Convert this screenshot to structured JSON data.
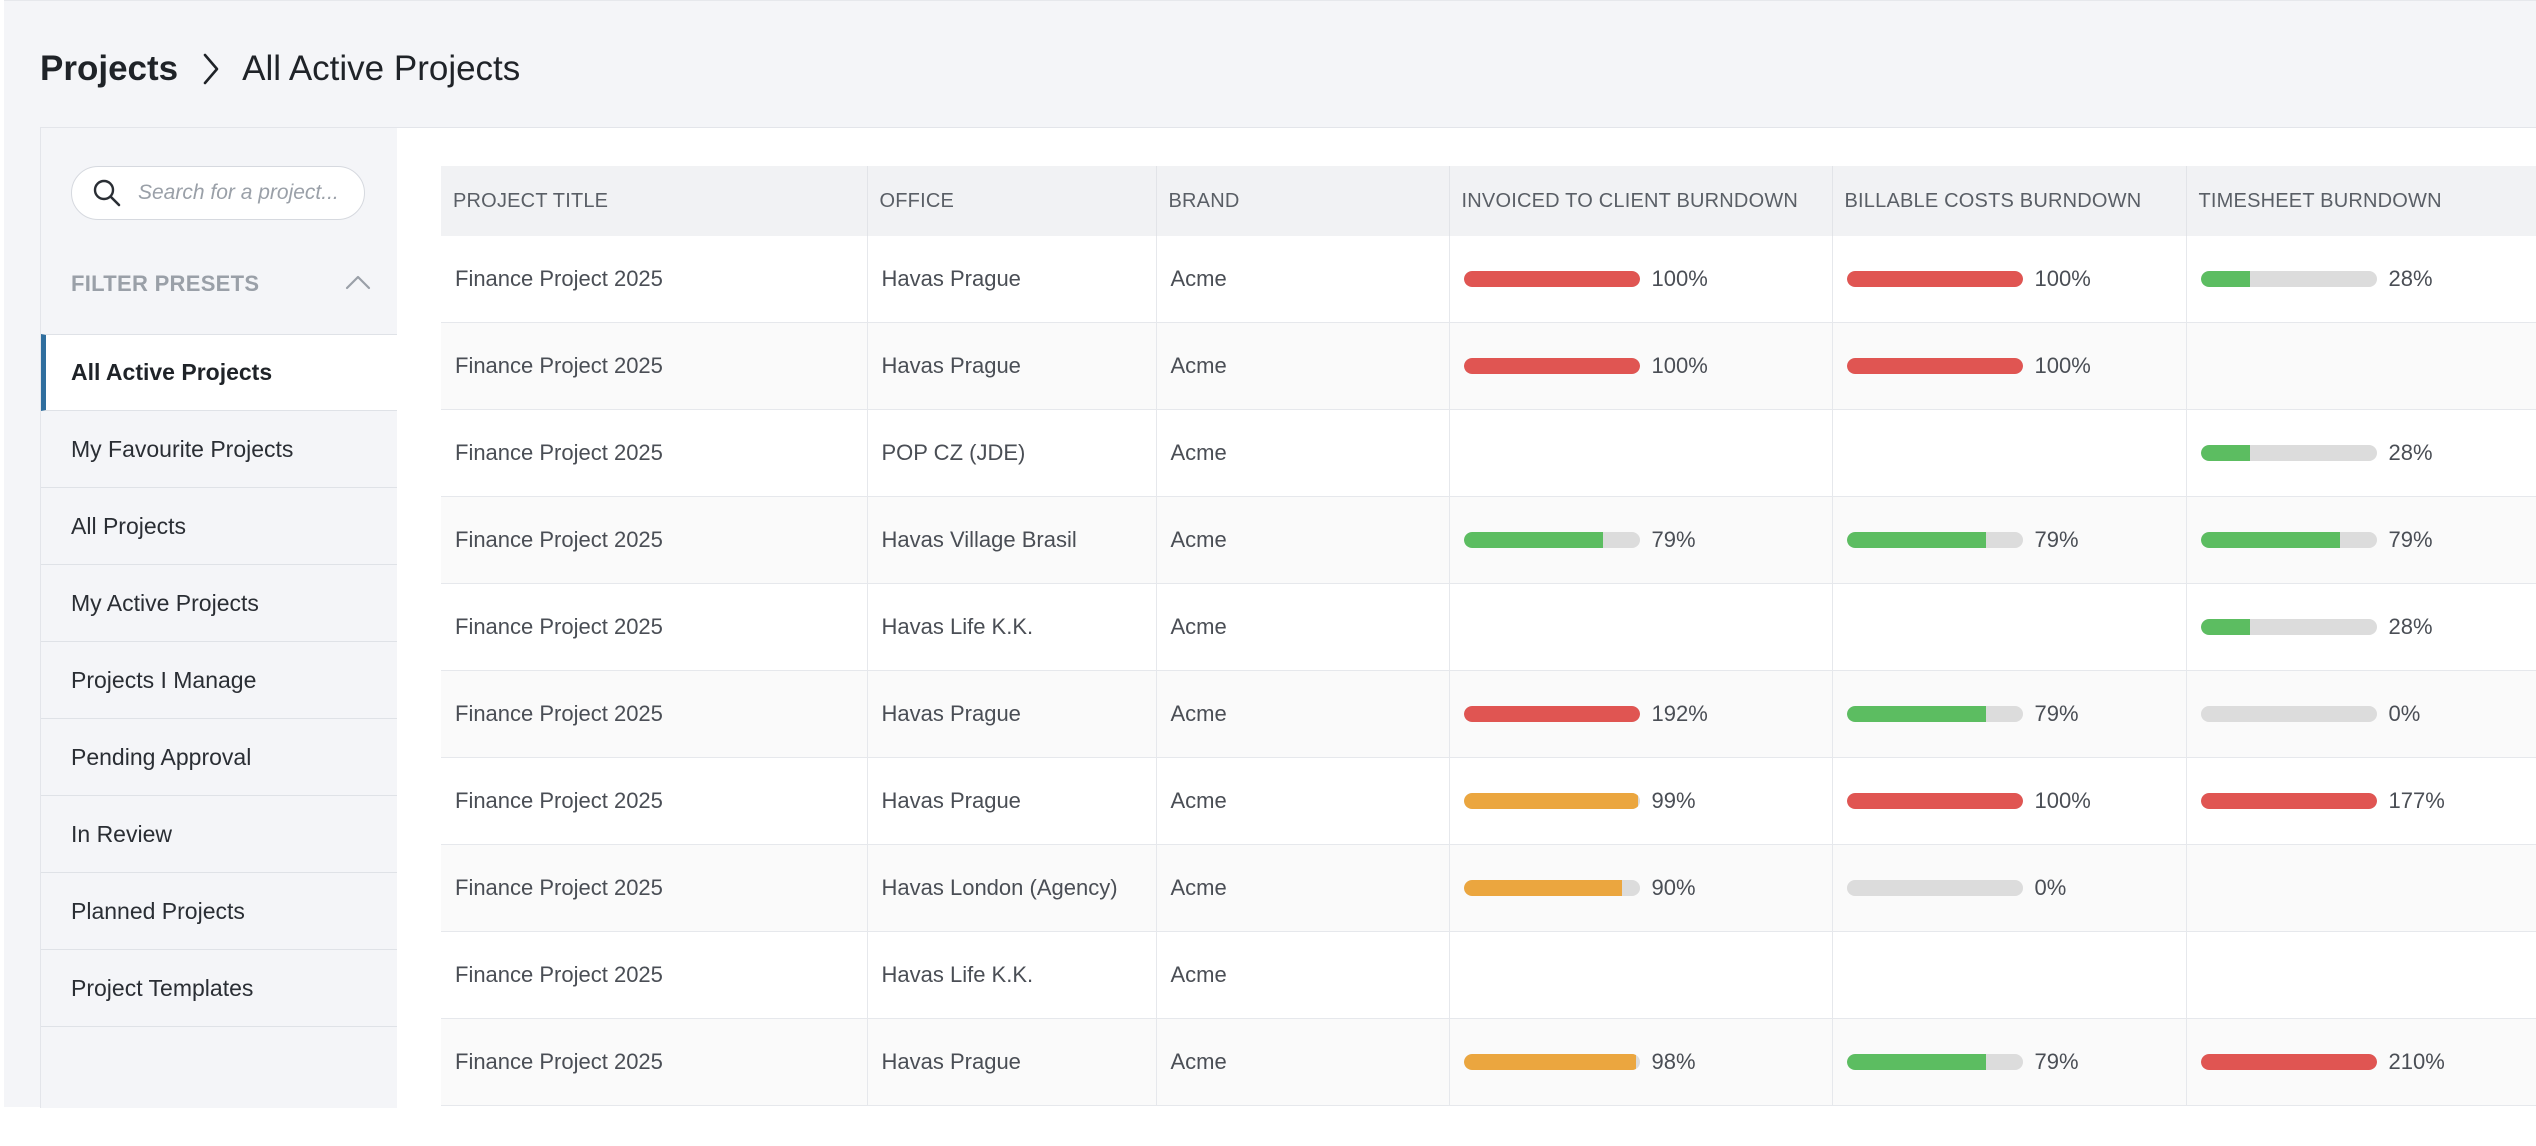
{
  "breadcrumb": {
    "root": "Projects",
    "current": "All Active Projects"
  },
  "search": {
    "placeholder": "Search for a project...",
    "icon": "search-icon"
  },
  "filter_presets": {
    "title": "FILTER PRESETS",
    "items": [
      {
        "label": "All Active Projects",
        "active": true
      },
      {
        "label": "My Favourite Projects",
        "active": false
      },
      {
        "label": "All Projects",
        "active": false
      },
      {
        "label": "My Active Projects",
        "active": false
      },
      {
        "label": "Projects I Manage",
        "active": false
      },
      {
        "label": "Pending Approval",
        "active": false
      },
      {
        "label": "In Review",
        "active": false
      },
      {
        "label": "Planned Projects",
        "active": false
      },
      {
        "label": "Project Templates",
        "active": false
      }
    ]
  },
  "colors": {
    "red": "#e05552",
    "green": "#5cbd61",
    "orange": "#eba63f",
    "track": "#dcdcdc",
    "accent": "#2f6e9e"
  },
  "table": {
    "columns": [
      "PROJECT TITLE",
      "OFFICE",
      "BRAND",
      "INVOICED TO CLIENT BURNDOWN",
      "BILLABLE COSTS BURNDOWN",
      "TIMESHEET BURNDOWN"
    ],
    "rows": [
      {
        "title": "Finance Project 2025",
        "office": "Havas Prague",
        "brand": "Acme",
        "invoiced": {
          "pct": 100,
          "label": "100%",
          "color": "red"
        },
        "billable": {
          "pct": 100,
          "label": "100%",
          "color": "red"
        },
        "timesheet": {
          "pct": 28,
          "label": "28%",
          "color": "green"
        }
      },
      {
        "title": "Finance Project 2025",
        "office": "Havas Prague",
        "brand": "Acme",
        "invoiced": {
          "pct": 100,
          "label": "100%",
          "color": "red"
        },
        "billable": {
          "pct": 100,
          "label": "100%",
          "color": "red"
        },
        "timesheet": null
      },
      {
        "title": "Finance Project 2025",
        "office": "POP CZ (JDE)",
        "brand": "Acme",
        "invoiced": null,
        "billable": null,
        "timesheet": {
          "pct": 28,
          "label": "28%",
          "color": "green"
        }
      },
      {
        "title": "Finance Project 2025",
        "office": "Havas Village Brasil",
        "brand": "Acme",
        "invoiced": {
          "pct": 79,
          "label": "79%",
          "color": "green"
        },
        "billable": {
          "pct": 79,
          "label": "79%",
          "color": "green"
        },
        "timesheet": {
          "pct": 79,
          "label": "79%",
          "color": "green"
        }
      },
      {
        "title": "Finance Project 2025",
        "office": "Havas Life K.K.",
        "brand": "Acme",
        "invoiced": null,
        "billable": null,
        "timesheet": {
          "pct": 28,
          "label": "28%",
          "color": "green"
        }
      },
      {
        "title": "Finance Project 2025",
        "office": "Havas Prague",
        "brand": "Acme",
        "invoiced": {
          "pct": 100,
          "label": "192%",
          "color": "red"
        },
        "billable": {
          "pct": 79,
          "label": "79%",
          "color": "green"
        },
        "timesheet": {
          "pct": 0,
          "label": "0%",
          "color": "green"
        }
      },
      {
        "title": "Finance Project 2025",
        "office": "Havas Prague",
        "brand": "Acme",
        "invoiced": {
          "pct": 99,
          "label": "99%",
          "color": "orange"
        },
        "billable": {
          "pct": 100,
          "label": "100%",
          "color": "red"
        },
        "timesheet": {
          "pct": 100,
          "label": "177%",
          "color": "red"
        }
      },
      {
        "title": "Finance Project 2025",
        "office": "Havas London (Agency)",
        "brand": "Acme",
        "invoiced": {
          "pct": 90,
          "label": "90%",
          "color": "orange"
        },
        "billable": {
          "pct": 0,
          "label": "0%",
          "color": "green"
        },
        "timesheet": null
      },
      {
        "title": "Finance Project 2025",
        "office": "Havas Life K.K.",
        "brand": "Acme",
        "invoiced": null,
        "billable": null,
        "timesheet": null
      },
      {
        "title": "Finance Project 2025",
        "office": "Havas Prague",
        "brand": "Acme",
        "invoiced": {
          "pct": 98,
          "label": "98%",
          "color": "orange"
        },
        "billable": {
          "pct": 79,
          "label": "79%",
          "color": "green"
        },
        "timesheet": {
          "pct": 100,
          "label": "210%",
          "color": "red"
        }
      }
    ]
  }
}
